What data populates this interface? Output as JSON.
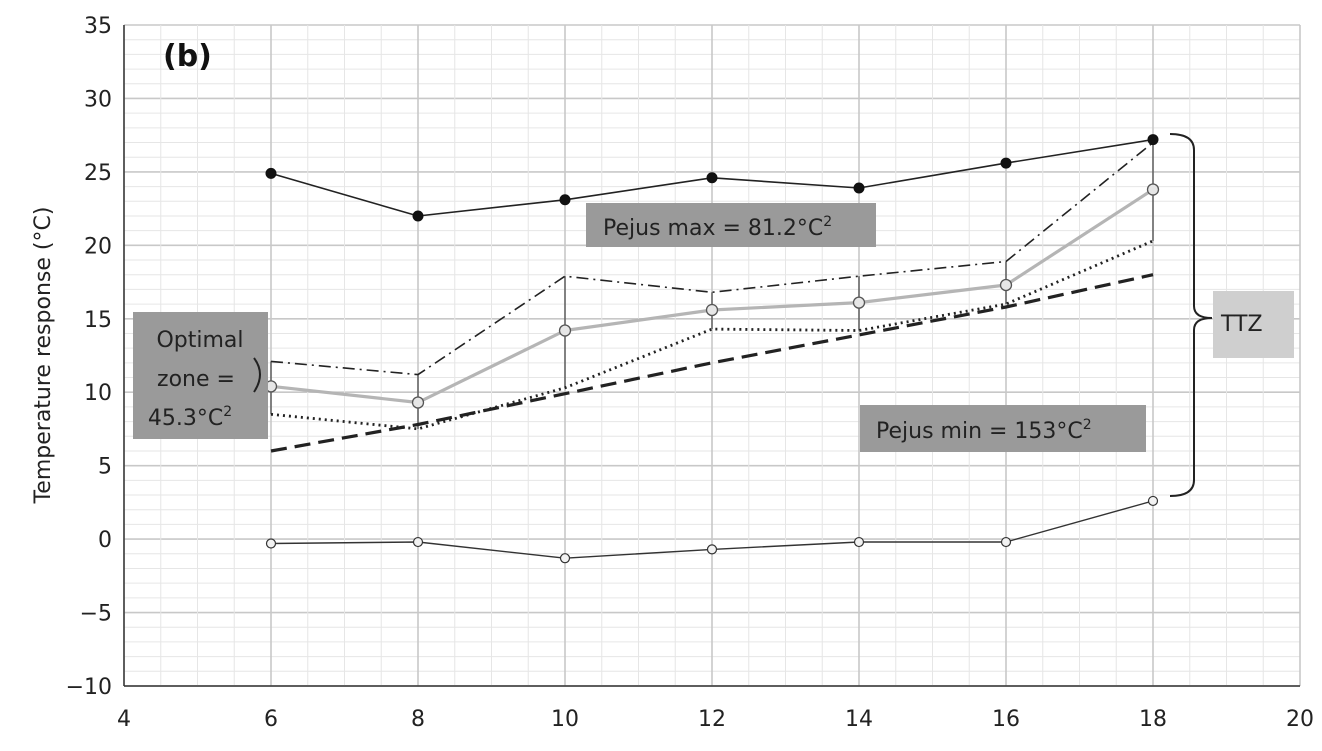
{
  "chart_data": {
    "type": "line",
    "panel_label": "(b)",
    "ylabel": "Temperature response (°C)",
    "xlabel": "",
    "xlim": [
      4,
      20
    ],
    "ylim": [
      -10,
      35
    ],
    "x_ticks": [
      4,
      6,
      8,
      10,
      12,
      14,
      16,
      18,
      20
    ],
    "y_ticks": [
      -10,
      -5,
      0,
      5,
      10,
      15,
      20,
      25,
      30,
      35
    ],
    "grid": true,
    "x": [
      6,
      8,
      10,
      12,
      14,
      16,
      18
    ],
    "series": [
      {
        "style": "solid-black-filled-markers",
        "values": [
          24.9,
          22.0,
          23.1,
          24.6,
          23.9,
          25.6,
          27.2
        ]
      },
      {
        "style": "solid-gray-open-markers",
        "values": [
          10.4,
          9.3,
          14.2,
          15.6,
          16.1,
          17.3,
          23.8
        ]
      },
      {
        "style": "dash-dot",
        "values": [
          12.1,
          11.2,
          17.9,
          16.8,
          17.9,
          18.9,
          27.0
        ]
      },
      {
        "style": "dotted",
        "values": [
          8.5,
          7.5,
          10.3,
          14.3,
          14.2,
          16.0,
          20.3
        ]
      },
      {
        "style": "dashed",
        "values": [
          6.0,
          7.8,
          9.9,
          12.0,
          13.9,
          15.8,
          18.0
        ]
      },
      {
        "style": "solid-black-open-markers",
        "values": [
          -0.3,
          -0.2,
          -1.3,
          -0.7,
          -0.2,
          -0.2,
          2.6
        ]
      }
    ],
    "error_bars": [
      {
        "x": 6,
        "low": 8.5,
        "high": 12.1
      },
      {
        "x": 8,
        "low": 7.5,
        "high": 11.2
      },
      {
        "x": 10,
        "low": 10.3,
        "high": 17.9
      },
      {
        "x": 12,
        "low": 14.3,
        "high": 16.8
      },
      {
        "x": 14,
        "low": 14.2,
        "high": 17.9
      },
      {
        "x": 16,
        "low": 16.0,
        "high": 18.9
      },
      {
        "x": 18,
        "low": 20.3,
        "high": 27.0
      }
    ],
    "annotations": {
      "optimal_zone": [
        "Optimal",
        "zone =",
        "45.3°C"
      ],
      "optimal_sup": "2",
      "pejus_max": "Pejus max = 81.2°C",
      "pejus_max_sup": "2",
      "pejus_min": "Pejus min = 153°C",
      "pejus_min_sup": "2",
      "ttz": "TTZ"
    }
  }
}
